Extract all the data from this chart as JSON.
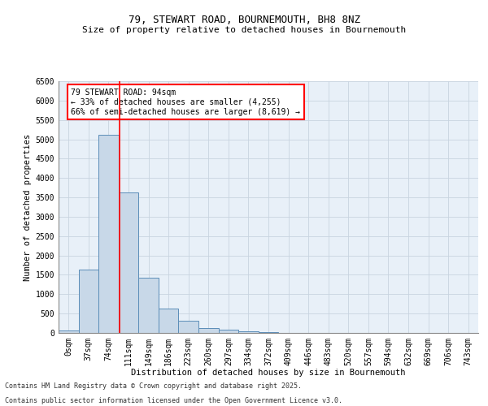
{
  "title": "79, STEWART ROAD, BOURNEMOUTH, BH8 8NZ",
  "subtitle": "Size of property relative to detached houses in Bournemouth",
  "xlabel": "Distribution of detached houses by size in Bournemouth",
  "ylabel": "Number of detached properties",
  "bar_labels": [
    "0sqm",
    "37sqm",
    "74sqm",
    "111sqm",
    "149sqm",
    "186sqm",
    "223sqm",
    "260sqm",
    "297sqm",
    "334sqm",
    "372sqm",
    "409sqm",
    "446sqm",
    "483sqm",
    "520sqm",
    "557sqm",
    "594sqm",
    "632sqm",
    "669sqm",
    "706sqm",
    "743sqm"
  ],
  "bar_values": [
    70,
    1640,
    5120,
    3620,
    1430,
    620,
    310,
    130,
    80,
    50,
    30,
    0,
    0,
    0,
    0,
    0,
    0,
    0,
    0,
    0,
    0
  ],
  "bar_color": "#c8d8e8",
  "bar_edge_color": "#5b8db8",
  "bar_width": 1.0,
  "red_line_x": 2.57,
  "annotation_text": "79 STEWART ROAD: 94sqm\n← 33% of detached houses are smaller (4,255)\n66% of semi-detached houses are larger (8,619) →",
  "annotation_box_color": "#ffffff",
  "annotation_border_color": "red",
  "ylim": [
    0,
    6500
  ],
  "yticks": [
    0,
    500,
    1000,
    1500,
    2000,
    2500,
    3000,
    3500,
    4000,
    4500,
    5000,
    5500,
    6000,
    6500
  ],
  "grid_color": "#c8d4e0",
  "background_color": "#e8f0f8",
  "footer_line1": "Contains HM Land Registry data © Crown copyright and database right 2025.",
  "footer_line2": "Contains public sector information licensed under the Open Government Licence v3.0.",
  "title_fontsize": 9,
  "subtitle_fontsize": 8,
  "axis_fontsize": 7,
  "ylabel_fontsize": 7.5,
  "xlabel_fontsize": 7.5,
  "annotation_fontsize": 7,
  "footer_fontsize": 6
}
